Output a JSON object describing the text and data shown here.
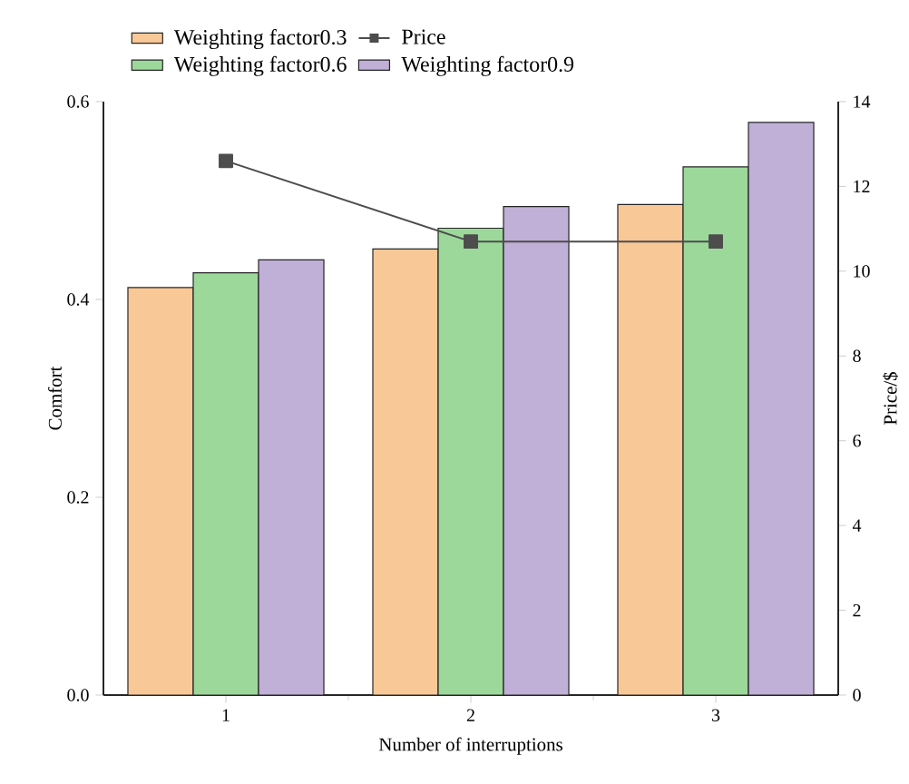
{
  "chart_data": {
    "type": "bar",
    "xlabel": "Number of interruptions",
    "ylabel": "Comfort",
    "y2label": "Price/$",
    "categories": [
      "1",
      "2",
      "3"
    ],
    "series": [
      {
        "name": "Weighting factor0.3",
        "color": "#f9c897",
        "values": [
          0.412,
          0.451,
          0.496
        ]
      },
      {
        "name": "Weighting factor0.6",
        "color": "#9dd89b",
        "values": [
          0.427,
          0.472,
          0.534
        ]
      },
      {
        "name": "Weighting factor0.9",
        "color": "#c0afd6",
        "values": [
          0.44,
          0.494,
          0.579
        ]
      },
      {
        "name": "Price",
        "type": "line",
        "axis": "y2",
        "color": "#4d4d4d",
        "values": [
          12.6,
          10.7,
          10.7
        ]
      }
    ],
    "ylim": [
      0,
      0.6
    ],
    "yticks": [
      {
        "value": 0,
        "label": "0.0"
      },
      {
        "value": 0.2,
        "label": "0.2"
      },
      {
        "value": 0.4,
        "label": "0.4"
      },
      {
        "value": 0.6,
        "label": "0.6"
      }
    ],
    "y2lim": [
      0,
      14
    ],
    "y2ticks": [
      0,
      2,
      4,
      6,
      8,
      10,
      12,
      14
    ],
    "legend": "top left",
    "marker": "square",
    "line_style": "solid",
    "grid": false
  }
}
